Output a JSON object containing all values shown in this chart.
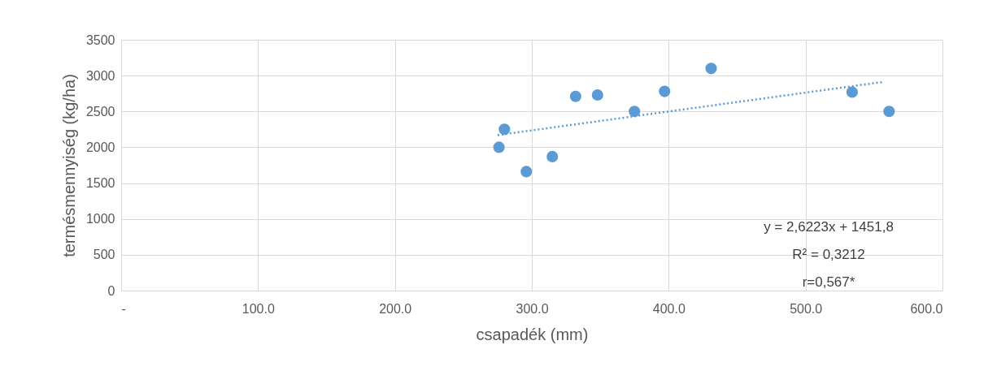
{
  "chart_data": {
    "type": "scatter",
    "xlabel": "csapadék (mm)",
    "ylabel": "termésmennyiség (kg/ha)",
    "xlim": [
      0,
      600
    ],
    "xticks": [
      {
        "value": 0,
        "label": "-"
      },
      {
        "value": 100,
        "label": "100.0"
      },
      {
        "value": 200,
        "label": "200.0"
      },
      {
        "value": 300,
        "label": "300.0"
      },
      {
        "value": 400,
        "label": "400.0"
      },
      {
        "value": 500,
        "label": "500.0"
      },
      {
        "value": 600,
        "label": "600.0"
      }
    ],
    "ylim": [
      0,
      3500
    ],
    "yticks": [
      0,
      500,
      1000,
      1500,
      2000,
      2500,
      3000,
      3500
    ],
    "grid": true,
    "series": [
      {
        "color": "#5b9bd5",
        "marker": "circle",
        "x": [
          276,
          280,
          296,
          315,
          332,
          348,
          375,
          397,
          431,
          534,
          561
        ],
        "values": [
          2000,
          2250,
          1660,
          1870,
          2710,
          2730,
          2500,
          2780,
          3100,
          2770,
          2500
        ]
      },
      {
        "type": "line",
        "color": "#5b9bd5",
        "line_style": "dotted",
        "marker": "none",
        "x": [
          275,
          556
        ],
        "values": [
          2170,
          2910
        ]
      }
    ],
    "annotations": [
      "y = 2,6223x + 1451,8",
      "R² = 0,3212",
      "r=0,567*"
    ]
  }
}
